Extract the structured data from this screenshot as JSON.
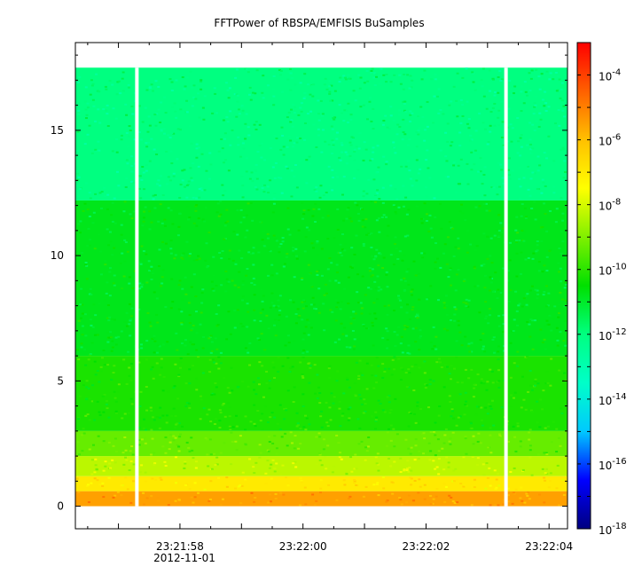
{
  "chart_data": {
    "type": "heatmap",
    "title": "FFTPower of RBSPA/EMFISIS  BuSamples",
    "xlabel": "",
    "ylabel": "",
    "x_tick_labels": [
      "23:21:58",
      "23:22:00",
      "23:22:02",
      "23:22:04"
    ],
    "x_date_label": "2012-11-01",
    "x_range": [
      "23:21:56.3",
      "23:22:04.3"
    ],
    "y_ticks": [
      0,
      5,
      10,
      15
    ],
    "y_range": [
      -0.9,
      18.5
    ],
    "data_y_range": [
      0,
      17.5
    ],
    "colorbar": {
      "scale": "log",
      "range": [
        1e-18,
        0.001
      ],
      "tick_labels": [
        {
          "base": "10",
          "exp": "-4"
        },
        {
          "base": "10",
          "exp": "-6"
        },
        {
          "base": "10",
          "exp": "-8"
        },
        {
          "base": "10",
          "exp": "-10"
        },
        {
          "base": "10",
          "exp": "-12"
        },
        {
          "base": "10",
          "exp": "-14"
        },
        {
          "base": "10",
          "exp": "-16"
        },
        {
          "base": "10",
          "exp": "-18"
        }
      ],
      "tick_exponents": [
        -4,
        -6,
        -8,
        -10,
        -12,
        -14,
        -16,
        -18
      ],
      "colormap": [
        "#000080",
        "#0000ff",
        "#00c8ff",
        "#00ffc8",
        "#00ff80",
        "#00e000",
        "#80f000",
        "#ffff00",
        "#ffc000",
        "#ff6000",
        "#ff0000"
      ]
    },
    "bands": [
      {
        "y_from": 0.0,
        "y_to": 0.6,
        "log_power": -5.5
      },
      {
        "y_from": 0.6,
        "y_to": 1.2,
        "log_power": -7.0
      },
      {
        "y_from": 1.2,
        "y_to": 2.0,
        "log_power": -8.3
      },
      {
        "y_from": 2.0,
        "y_to": 3.0,
        "log_power": -9.3
      },
      {
        "y_from": 3.0,
        "y_to": 6.0,
        "log_power": -10.2
      },
      {
        "y_from": 6.0,
        "y_to": 12.2,
        "log_power": -10.8
      },
      {
        "y_from": 12.2,
        "y_to": 17.5,
        "log_power": -12.0
      }
    ],
    "data_gaps_time": [
      "23:21:57.3",
      "23:22:03.3"
    ]
  }
}
